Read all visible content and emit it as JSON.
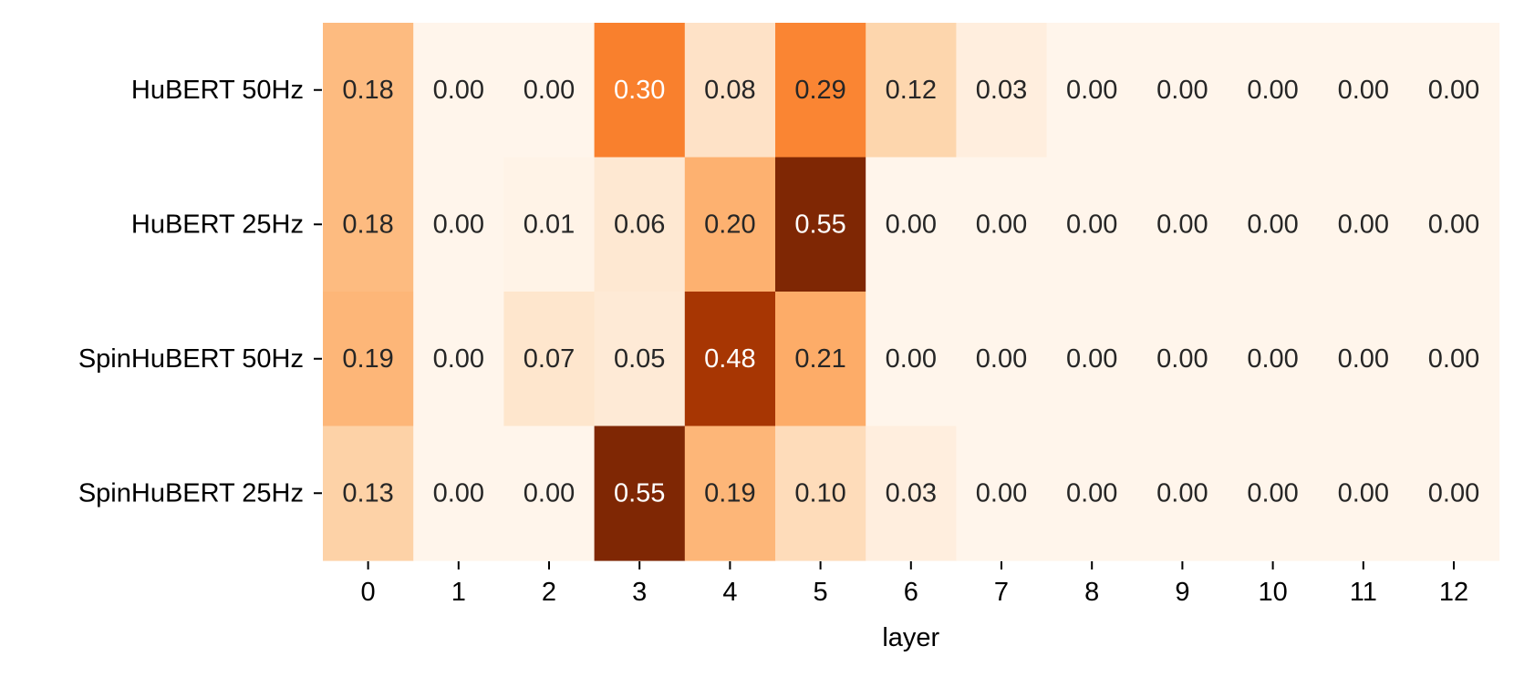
{
  "chart_data": {
    "type": "heatmap",
    "title": "",
    "xlabel": "layer",
    "ylabel": "",
    "x_categories": [
      "0",
      "1",
      "2",
      "3",
      "4",
      "5",
      "6",
      "7",
      "8",
      "9",
      "10",
      "11",
      "12"
    ],
    "y_categories": [
      "HuBERT 50Hz",
      "HuBERT 25Hz",
      "SpinHuBERT 50Hz",
      "SpinHuBERT 25Hz"
    ],
    "values": [
      [
        0.18,
        0.0,
        0.0,
        0.3,
        0.08,
        0.29,
        0.12,
        0.03,
        0.0,
        0.0,
        0.0,
        0.0,
        0.0
      ],
      [
        0.18,
        0.0,
        0.01,
        0.06,
        0.2,
        0.55,
        0.0,
        0.0,
        0.0,
        0.0,
        0.0,
        0.0,
        0.0
      ],
      [
        0.19,
        0.0,
        0.07,
        0.05,
        0.48,
        0.21,
        0.0,
        0.0,
        0.0,
        0.0,
        0.0,
        0.0,
        0.0
      ],
      [
        0.13,
        0.0,
        0.0,
        0.55,
        0.19,
        0.1,
        0.03,
        0.0,
        0.0,
        0.0,
        0.0,
        0.0,
        0.0
      ]
    ],
    "value_format": "0.00",
    "colormap": "Oranges",
    "color_range": [
      0.0,
      0.55
    ],
    "colorbar": false,
    "annotations": true
  }
}
